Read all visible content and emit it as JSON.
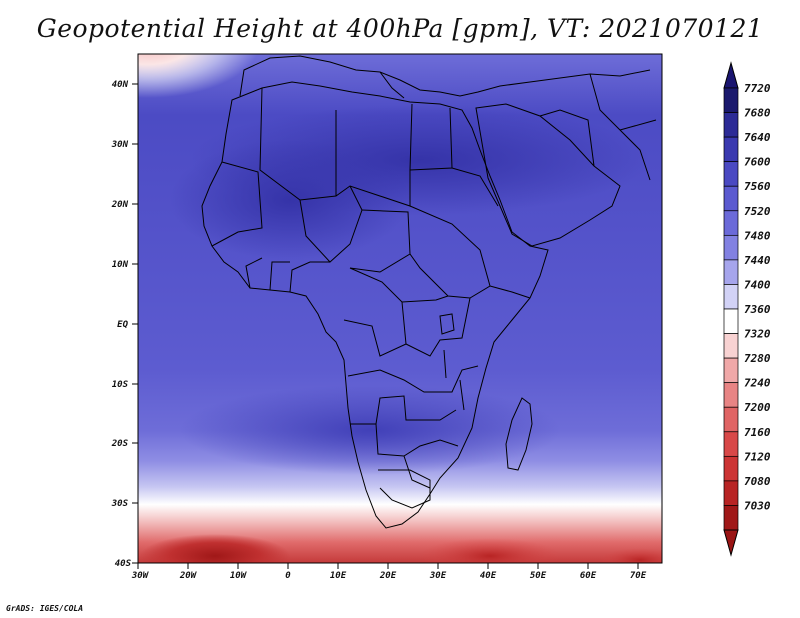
{
  "title": "Geopotential Height at 400hPa [gpm], VT: 2021070121",
  "credit": "GrADS: IGES/COLA",
  "map": {
    "lat_labels": [
      "40N",
      "30N",
      "20N",
      "10N",
      "EQ",
      "10S",
      "20S",
      "30S",
      "40S"
    ],
    "lon_labels": [
      "30W",
      "20W",
      "10W",
      "0",
      "10E",
      "20E",
      "30E",
      "40E",
      "50E",
      "60E",
      "70E"
    ]
  },
  "colorbar": {
    "levels": [
      "7720",
      "7680",
      "7640",
      "7600",
      "7560",
      "7520",
      "7480",
      "7440",
      "7400",
      "7360",
      "7320",
      "7280",
      "7240",
      "7200",
      "7160",
      "7120",
      "7080",
      "7030"
    ],
    "colors": [
      "#1b1a6e",
      "#2c2b96",
      "#3a39b0",
      "#4a49c2",
      "#5b5ad0",
      "#6b6ad9",
      "#8281e2",
      "#a6a5ec",
      "#d2d2f6",
      "#ffffff",
      "#f8d2d2",
      "#f0a8a8",
      "#e88484",
      "#e06464",
      "#d84848",
      "#cc3434",
      "#b82424",
      "#a01818"
    ]
  }
}
